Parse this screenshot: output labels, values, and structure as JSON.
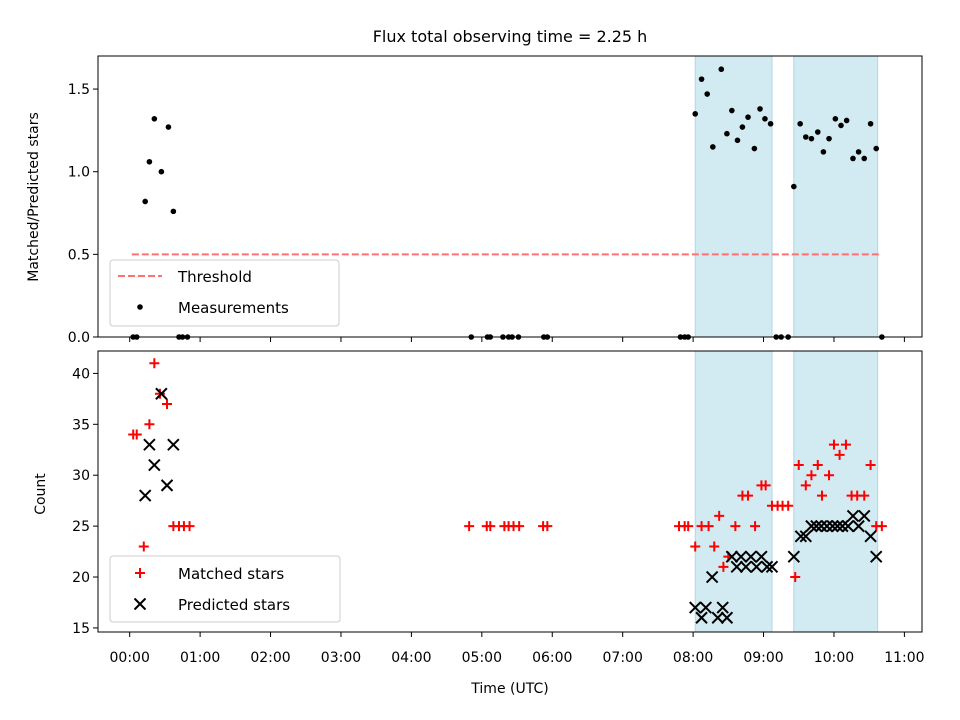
{
  "chart_data": {
    "type": "scatter",
    "title": "Flux total observing time = 2.25 h",
    "xlabel": "Time (UTC)",
    "x_ticks": [
      "00:00",
      "01:00",
      "02:00",
      "03:00",
      "04:00",
      "05:00",
      "06:00",
      "07:00",
      "08:00",
      "09:00",
      "10:00",
      "11:00"
    ],
    "x_range_hours": [
      -0.45,
      11.25
    ],
    "shaded_intervals_hours": [
      [
        8.03,
        9.12
      ],
      [
        9.43,
        10.62
      ]
    ],
    "shade_color": "#add8e6",
    "panels": [
      {
        "ylabel": "Matched/Predicted stars",
        "ylim": [
          0,
          1.7
        ],
        "yticks": [
          "0.0",
          "0.5",
          "1.0",
          "1.5"
        ],
        "threshold": {
          "name": "Threshold",
          "y": 0.5,
          "x_from": 0.03,
          "x_to": 10.68,
          "color": "#ff7070"
        },
        "measurements": {
          "name": "Measurements",
          "color": "#000000",
          "x": [
            0.05,
            0.1,
            0.22,
            0.28,
            0.35,
            0.45,
            0.55,
            0.62,
            0.7,
            0.75,
            0.82,
            4.85,
            5.08,
            5.12,
            5.3,
            5.38,
            5.43,
            5.52,
            5.88,
            5.93,
            7.82,
            7.88,
            7.93,
            8.03,
            8.12,
            8.2,
            8.28,
            8.4,
            8.48,
            8.55,
            8.63,
            8.7,
            8.78,
            8.87,
            8.95,
            9.02,
            9.1,
            9.18,
            9.25,
            9.35,
            9.43,
            9.52,
            9.6,
            9.68,
            9.77,
            9.85,
            9.93,
            10.02,
            10.1,
            10.18,
            10.27,
            10.35,
            10.43,
            10.52,
            10.6,
            10.68
          ],
          "y": [
            0,
            0,
            0.82,
            1.06,
            1.32,
            1.0,
            1.27,
            0.76,
            0,
            0,
            0,
            0,
            0,
            0,
            0,
            0,
            0,
            0,
            0,
            0,
            0,
            0,
            0,
            1.35,
            1.56,
            1.47,
            1.15,
            1.62,
            1.23,
            1.37,
            1.19,
            1.27,
            1.33,
            1.14,
            1.38,
            1.32,
            1.29,
            0,
            0,
            0,
            0.91,
            1.29,
            1.21,
            1.2,
            1.24,
            1.12,
            1.2,
            1.32,
            1.28,
            1.31,
            1.08,
            1.12,
            1.08,
            1.29,
            1.14,
            0
          ]
        },
        "legend": {
          "location": "lower-left",
          "entries": [
            "Threshold",
            "Measurements"
          ]
        }
      },
      {
        "ylabel": "Count",
        "ylim": [
          14.6,
          42.2
        ],
        "yticks": [
          "15",
          "20",
          "25",
          "30",
          "35",
          "40"
        ],
        "matched": {
          "name": "Matched stars",
          "color": "#ff0000",
          "x": [
            0.05,
            0.1,
            0.2,
            0.28,
            0.35,
            0.43,
            0.53,
            0.62,
            0.7,
            0.77,
            0.85,
            4.82,
            5.07,
            5.12,
            5.32,
            5.38,
            5.45,
            5.53,
            5.87,
            5.93,
            7.8,
            7.88,
            7.93,
            8.03,
            8.12,
            8.22,
            8.3,
            8.37,
            8.43,
            8.5,
            8.6,
            8.7,
            8.78,
            8.88,
            8.97,
            9.03,
            9.12,
            9.2,
            9.27,
            9.35,
            9.45,
            9.5,
            9.6,
            9.68,
            9.77,
            9.83,
            9.93,
            10.0,
            10.08,
            10.17,
            10.25,
            10.33,
            10.43,
            10.52,
            10.6,
            10.68
          ],
          "y": [
            34,
            34,
            23,
            35,
            41,
            38,
            37,
            25,
            25,
            25,
            25,
            25,
            25,
            25,
            25,
            25,
            25,
            25,
            25,
            25,
            25,
            25,
            25,
            23,
            25,
            25,
            23,
            26,
            21,
            22,
            25,
            28,
            28,
            25,
            29,
            29,
            27,
            27,
            27,
            27,
            20,
            31,
            29,
            30,
            31,
            28,
            30,
            33,
            32,
            33,
            28,
            28,
            28,
            31,
            25,
            25
          ]
        },
        "predicted": {
          "name": "Predicted stars",
          "color": "#000000",
          "x": [
            0.22,
            0.28,
            0.35,
            0.45,
            0.53,
            0.62,
            8.03,
            8.12,
            8.18,
            8.27,
            8.35,
            8.42,
            8.48,
            8.55,
            8.62,
            8.68,
            8.75,
            8.82,
            8.9,
            8.97,
            9.05,
            9.12,
            9.43,
            9.53,
            9.6,
            9.68,
            9.75,
            9.82,
            9.9,
            9.98,
            10.05,
            10.12,
            10.2,
            10.27,
            10.35,
            10.43,
            10.52,
            10.6
          ],
          "y": [
            28,
            33,
            31,
            38,
            29,
            33,
            17,
            16,
            17,
            20,
            16,
            17,
            16,
            22,
            21,
            22,
            21,
            22,
            21,
            22,
            21,
            21,
            22,
            24,
            24,
            25,
            25,
            25,
            25,
            25,
            25,
            25,
            25,
            26,
            25,
            26,
            24,
            22
          ]
        },
        "legend": {
          "location": "lower-left",
          "entries": [
            "Matched stars",
            "Predicted stars"
          ]
        }
      }
    ]
  }
}
